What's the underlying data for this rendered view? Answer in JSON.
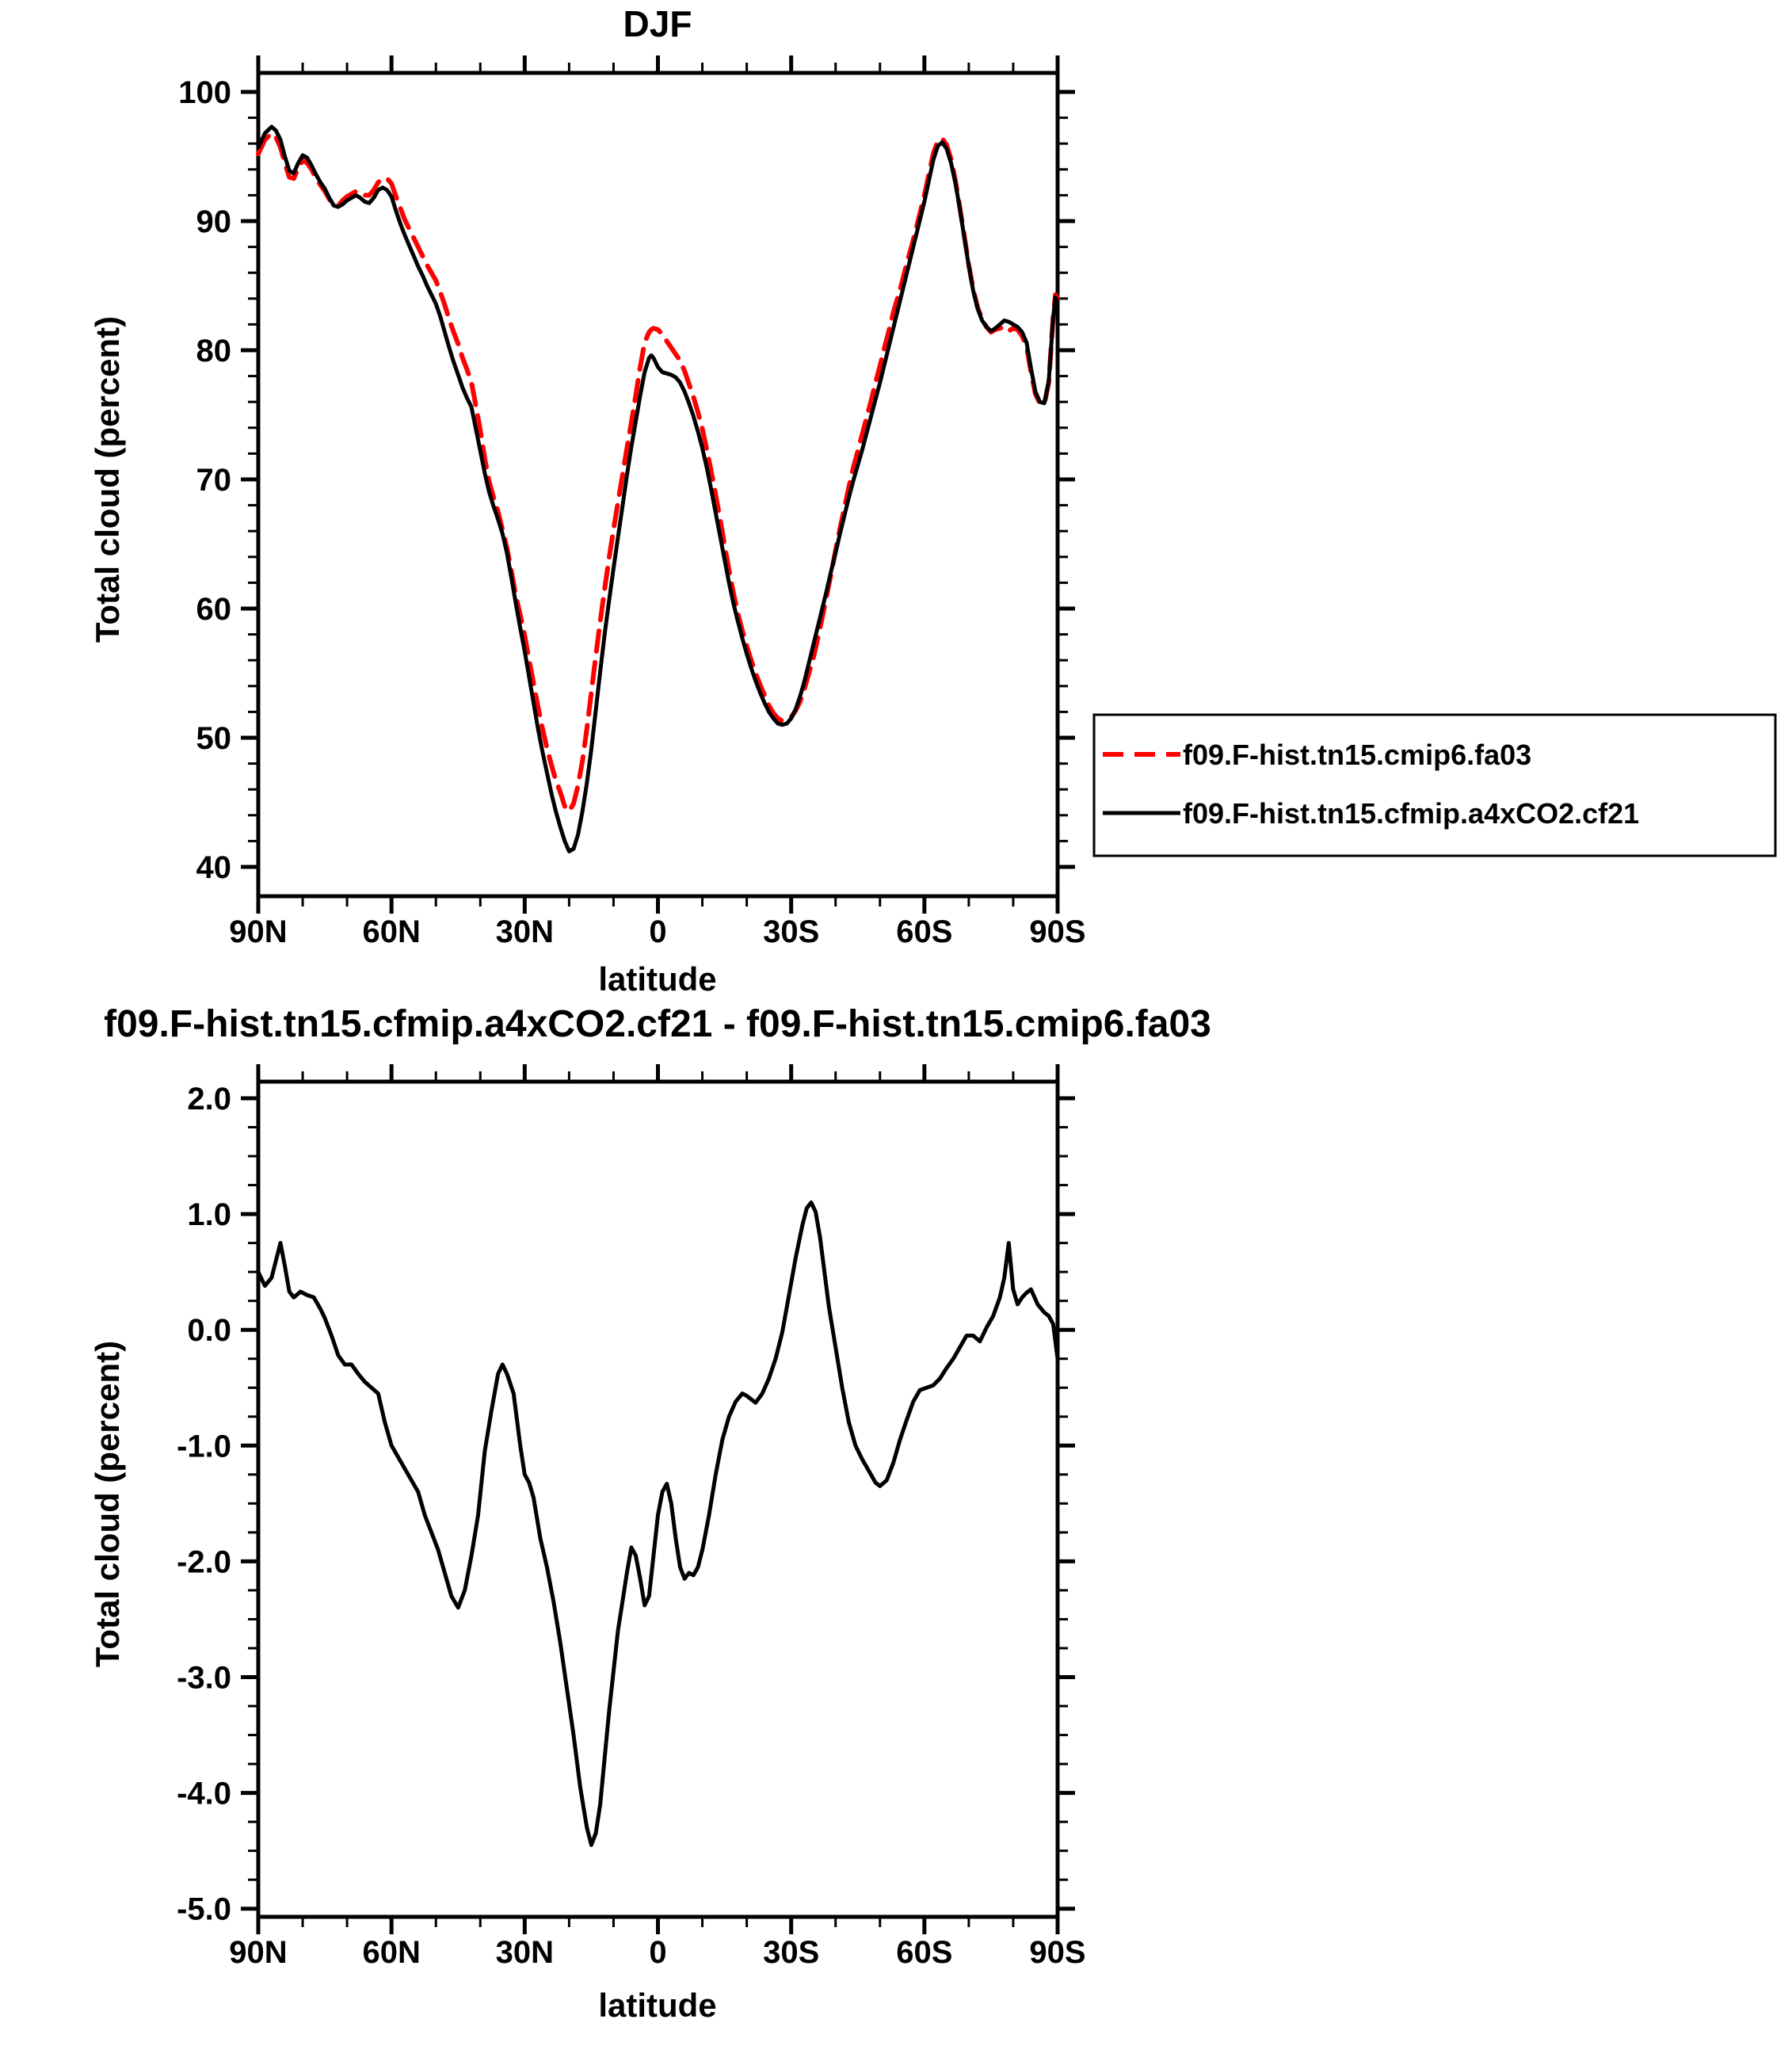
{
  "page": {
    "background": "#ffffff"
  },
  "chart_data": [
    {
      "type": "line",
      "title": "DJF",
      "xlabel": "latitude",
      "ylabel": "Total cloud (percent)",
      "xticks": [
        "90N",
        "60N",
        "30N",
        "0",
        "30S",
        "60S",
        "90S"
      ],
      "xtick_values": [
        90,
        60,
        30,
        0,
        -30,
        -60,
        -90
      ],
      "yticks": [
        "100",
        "90",
        "80",
        "70",
        "60",
        "50",
        "40"
      ],
      "ytick_values": [
        100,
        90,
        80,
        70,
        60,
        50,
        40
      ],
      "ylim": [
        40,
        100
      ],
      "xlim": [
        90,
        -90
      ],
      "legend": {
        "entries": [
          {
            "label": "f09.F-hist.tn15.cmip6.fa03",
            "color": "#ff0000",
            "style": "dashed"
          },
          {
            "label": "f09.F-hist.tn15.cfmip.a4xCO2.cf21",
            "color": "#000000",
            "style": "solid"
          }
        ]
      },
      "x": [
        90,
        88.5,
        87,
        86,
        85,
        84,
        83,
        82,
        81,
        80,
        79,
        78,
        77,
        76,
        75,
        74,
        73,
        72,
        71,
        70,
        69,
        68,
        67,
        66,
        65,
        64,
        63,
        62,
        61,
        60,
        59,
        58,
        57,
        56,
        55,
        54,
        53,
        52,
        51,
        50,
        49,
        48,
        47,
        46,
        45,
        44,
        43,
        42,
        41,
        40,
        39,
        38,
        37,
        36,
        35,
        34,
        33,
        32,
        31,
        30,
        29,
        28,
        27,
        26,
        25,
        24,
        23,
        22,
        21,
        20,
        19,
        18,
        17,
        16,
        15,
        14,
        13,
        12,
        11,
        10,
        9,
        8,
        7,
        6,
        5,
        4,
        3,
        2,
        1.5,
        1,
        0,
        -1,
        -2,
        -3,
        -4,
        -5,
        -6,
        -7,
        -8,
        -9,
        -10,
        -11,
        -12,
        -13,
        -14,
        -15,
        -16,
        -17,
        -18,
        -19,
        -20,
        -21,
        -22,
        -23,
        -24,
        -25,
        -26,
        -27,
        -28,
        -29,
        -30,
        -31,
        -32,
        -33,
        -34,
        -35,
        -36,
        -37,
        -38,
        -39,
        -40,
        -41,
        -42,
        -43,
        -44,
        -45,
        -46,
        -47,
        -48,
        -49,
        -50,
        -51,
        -52,
        -53,
        -54,
        -55,
        -56,
        -57,
        -58,
        -59,
        -60,
        -61,
        -62,
        -63,
        -64,
        -65,
        -66,
        -67,
        -68,
        -69,
        -70,
        -71,
        -72,
        -73,
        -74,
        -75,
        -76,
        -77,
        -78,
        -79,
        -80,
        -81,
        -82,
        -83,
        -84,
        -85,
        -86,
        -87,
        -88,
        -89,
        -89.5,
        -90
      ],
      "series": [
        {
          "name": "f09.F-hist.tn15.cmip6.fa03",
          "color": "#ff0000",
          "style": "dashed",
          "y": [
            95.2,
            96.3,
            96.8,
            96.5,
            95.7,
            94.5,
            93.4,
            93.3,
            94.1,
            94.7,
            94.5,
            94.0,
            93.3,
            92.8,
            92.3,
            91.7,
            91.3,
            91.2,
            91.6,
            91.9,
            92.1,
            92.3,
            92.2,
            92.0,
            92.0,
            92.4,
            93.0,
            93.3,
            93.3,
            92.9,
            91.9,
            91.0,
            90.1,
            89.4,
            88.7,
            88.0,
            87.3,
            86.6,
            86.0,
            85.4,
            84.5,
            83.5,
            82.4,
            81.4,
            80.5,
            79.4,
            78.5,
            77.5,
            75.7,
            73.8,
            71.6,
            69.8,
            68.6,
            67.5,
            66.1,
            64.7,
            62.9,
            61.0,
            59.5,
            57.9,
            56.0,
            54.2,
            52.4,
            50.7,
            49.2,
            47.9,
            46.7,
            45.8,
            44.7,
            44.3,
            44.9,
            46.3,
            48.2,
            50.7,
            53.5,
            56.3,
            59.0,
            61.5,
            63.9,
            66.1,
            68.2,
            70.3,
            72.4,
            74.4,
            76.5,
            78.7,
            80.6,
            81.4,
            81.6,
            81.7,
            81.6,
            81.2,
            80.7,
            80.2,
            79.7,
            79.2,
            78.4,
            77.4,
            76.4,
            75.2,
            73.9,
            72.3,
            70.6,
            68.8,
            66.9,
            64.9,
            63.0,
            61.2,
            59.6,
            58.3,
            57.1,
            56.0,
            55.0,
            54.1,
            53.3,
            52.5,
            51.9,
            51.5,
            51.3,
            51.4,
            51.6,
            52.1,
            52.8,
            53.8,
            55.0,
            56.2,
            57.7,
            59.3,
            61.0,
            62.7,
            64.5,
            66.2,
            67.8,
            69.4,
            70.9,
            72.2,
            73.5,
            74.8,
            76.1,
            77.5,
            78.8,
            80.2,
            81.5,
            82.9,
            84.1,
            85.3,
            86.7,
            87.9,
            89.2,
            90.6,
            92.0,
            93.6,
            95.2,
            96.2,
            96.4,
            95.9,
            94.8,
            93.1,
            91.0,
            88.8,
            86.6,
            84.7,
            83.3,
            82.4,
            81.8,
            81.4,
            81.6,
            81.7,
            81.8,
            81.5,
            81.7,
            81.6,
            81.1,
            80.3,
            78.3,
            76.6,
            75.9,
            75.8,
            77.5,
            82.6,
            84.3,
            84.0
          ]
        },
        {
          "name": "f09.F-hist.tn15.cfmip.a4xCO2.cf21",
          "color": "#000000",
          "style": "solid",
          "y": [
            95.7,
            96.8,
            97.3,
            97.0,
            96.3,
            95.0,
            93.9,
            93.7,
            94.5,
            95.1,
            94.9,
            94.3,
            93.6,
            93.0,
            92.5,
            91.8,
            91.2,
            91.1,
            91.3,
            91.6,
            91.8,
            92.0,
            91.8,
            91.5,
            91.4,
            91.8,
            92.4,
            92.6,
            92.4,
            91.9,
            90.8,
            89.8,
            88.9,
            88.1,
            87.3,
            86.5,
            85.8,
            85.0,
            84.3,
            83.6,
            82.6,
            81.4,
            80.2,
            79.1,
            78.1,
            77.1,
            76.3,
            75.6,
            73.9,
            72.2,
            70.5,
            69.0,
            67.9,
            66.9,
            65.8,
            64.3,
            62.4,
            60.4,
            58.5,
            56.7,
            54.7,
            52.7,
            50.7,
            48.9,
            47.3,
            45.7,
            44.3,
            43.1,
            42.0,
            41.2,
            41.4,
            42.5,
            44.3,
            46.5,
            49.1,
            52.1,
            55.1,
            58.0,
            60.6,
            63.1,
            65.5,
            67.9,
            70.3,
            72.5,
            74.5,
            76.5,
            78.3,
            79.4,
            79.6,
            79.4,
            78.7,
            78.3,
            78.2,
            78.1,
            77.9,
            77.5,
            76.8,
            75.9,
            74.9,
            73.7,
            72.4,
            70.9,
            69.2,
            67.4,
            65.6,
            63.8,
            62.0,
            60.4,
            59.0,
            57.7,
            56.5,
            55.4,
            54.4,
            53.5,
            52.7,
            52.0,
            51.5,
            51.1,
            51.0,
            51.1,
            51.5,
            52.2,
            53.2,
            54.4,
            55.8,
            57.2,
            58.6,
            60.0,
            61.4,
            62.9,
            64.3,
            65.8,
            67.2,
            68.6,
            69.9,
            71.1,
            72.3,
            73.6,
            74.9,
            76.2,
            77.5,
            78.9,
            80.3,
            81.7,
            83.1,
            84.5,
            85.9,
            87.3,
            88.7,
            90.1,
            91.5,
            93.1,
            94.7,
            95.8,
            96.1,
            95.6,
            94.5,
            92.9,
            90.9,
            88.7,
            86.5,
            84.6,
            83.2,
            82.3,
            81.8,
            81.5,
            81.7,
            82.0,
            82.3,
            82.2,
            82.0,
            81.8,
            81.4,
            80.6,
            78.6,
            76.8,
            76.0,
            75.9,
            77.6,
            82.5,
            84.1,
            83.7
          ]
        }
      ]
    },
    {
      "type": "line",
      "title": "f09.F-hist.tn15.cfmip.a4xCO2.cf21 - f09.F-hist.tn15.cmip6.fa03",
      "xlabel": "latitude",
      "ylabel": "Total cloud (percent)",
      "xticks": [
        "90N",
        "60N",
        "30N",
        "0",
        "30S",
        "60S",
        "90S"
      ],
      "xtick_values": [
        90,
        60,
        30,
        0,
        -30,
        -60,
        -90
      ],
      "yticks": [
        "2.0",
        "1.0",
        "0.0",
        "-1.0",
        "-2.0",
        "-3.0",
        "-4.0",
        "-5.0"
      ],
      "ytick_values": [
        2,
        1,
        0,
        -1,
        -2,
        -3,
        -4,
        -5
      ],
      "ylim": [
        -5,
        2
      ],
      "xlim": [
        90,
        -90
      ],
      "x": [
        90,
        88.5,
        87,
        86,
        85,
        84,
        83,
        82,
        80.5,
        79,
        77.5,
        76,
        75,
        73.5,
        72,
        70.5,
        69,
        67.5,
        66,
        64.5,
        63,
        61.5,
        60,
        58.5,
        57,
        55.5,
        54,
        52.5,
        51,
        49.5,
        48,
        46.5,
        45,
        43.5,
        42,
        40.5,
        39,
        37.5,
        36,
        35,
        34,
        32.5,
        31,
        30,
        29,
        28,
        26.5,
        25,
        23.5,
        22,
        20.5,
        19,
        17.5,
        16,
        15,
        14,
        13,
        12,
        11,
        10,
        9,
        8,
        7,
        6,
        5,
        4,
        3,
        2,
        1,
        0,
        -1,
        -2,
        -3,
        -4,
        -5,
        -6,
        -7,
        -8,
        -9,
        -10,
        -11.5,
        -13,
        -14.5,
        -16,
        -17.5,
        -19,
        -20,
        -21,
        -22,
        -23.5,
        -25,
        -26.5,
        -28,
        -29.5,
        -31,
        -32.5,
        -33.5,
        -34.5,
        -35.5,
        -36.5,
        -37.5,
        -38.5,
        -40,
        -41.5,
        -43,
        -44.5,
        -46,
        -47.5,
        -49,
        -50,
        -51.5,
        -53,
        -54.5,
        -56,
        -57.5,
        -59,
        -60.5,
        -62,
        -63.5,
        -65,
        -66.5,
        -68,
        -69.5,
        -71,
        -72.5,
        -74,
        -75.5,
        -77,
        -78,
        -79,
        -80,
        -81,
        -82,
        -83,
        -84,
        -85.5,
        -87,
        -88,
        -89,
        -90
      ],
      "series": [
        {
          "color": "#000000",
          "style": "solid",
          "y": [
            0.5,
            0.38,
            0.45,
            0.6,
            0.75,
            0.55,
            0.33,
            0.28,
            0.33,
            0.3,
            0.28,
            0.18,
            0.1,
            -0.05,
            -0.22,
            -0.3,
            -0.3,
            -0.38,
            -0.45,
            -0.5,
            -0.55,
            -0.8,
            -1.0,
            -1.1,
            -1.2,
            -1.3,
            -1.4,
            -1.6,
            -1.75,
            -1.9,
            -2.1,
            -2.3,
            -2.4,
            -2.25,
            -1.95,
            -1.6,
            -1.05,
            -0.7,
            -0.38,
            -0.3,
            -0.38,
            -0.55,
            -1.0,
            -1.25,
            -1.32,
            -1.45,
            -1.8,
            -2.05,
            -2.35,
            -2.7,
            -3.1,
            -3.5,
            -3.95,
            -4.3,
            -4.45,
            -4.35,
            -4.1,
            -3.7,
            -3.3,
            -2.95,
            -2.6,
            -2.35,
            -2.1,
            -1.88,
            -1.95,
            -2.15,
            -2.38,
            -2.3,
            -1.95,
            -1.6,
            -1.4,
            -1.33,
            -1.5,
            -1.8,
            -2.05,
            -2.15,
            -2.1,
            -2.12,
            -2.05,
            -1.9,
            -1.6,
            -1.25,
            -0.95,
            -0.75,
            -0.62,
            -0.55,
            -0.57,
            -0.6,
            -0.63,
            -0.55,
            -0.42,
            -0.25,
            -0.02,
            0.3,
            0.62,
            0.9,
            1.05,
            1.1,
            1.02,
            0.8,
            0.5,
            0.2,
            -0.15,
            -0.5,
            -0.8,
            -1.0,
            -1.12,
            -1.22,
            -1.32,
            -1.35,
            -1.3,
            -1.15,
            -0.95,
            -0.78,
            -0.62,
            -0.52,
            -0.5,
            -0.48,
            -0.42,
            -0.33,
            -0.25,
            -0.15,
            -0.05,
            -0.05,
            -0.1,
            0.02,
            0.12,
            0.28,
            0.45,
            0.75,
            0.35,
            0.22,
            0.28,
            0.32,
            0.35,
            0.22,
            0.15,
            0.12,
            0.05,
            -0.25
          ]
        }
      ]
    }
  ]
}
